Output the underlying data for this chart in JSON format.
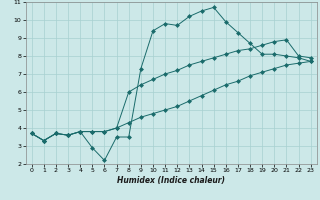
{
  "xlabel": "Humidex (Indice chaleur)",
  "xlim": [
    -0.5,
    23.5
  ],
  "ylim": [
    2,
    11
  ],
  "xticks": [
    0,
    1,
    2,
    3,
    4,
    5,
    6,
    7,
    8,
    9,
    10,
    11,
    12,
    13,
    14,
    15,
    16,
    17,
    18,
    19,
    20,
    21,
    22,
    23
  ],
  "yticks": [
    2,
    3,
    4,
    5,
    6,
    7,
    8,
    9,
    10,
    11
  ],
  "bg_color": "#cce8e8",
  "grid_color": "#a8d0d0",
  "line_color": "#1a6b6b",
  "line1_x": [
    0,
    1,
    2,
    3,
    4,
    5,
    6,
    7,
    8,
    9,
    10,
    11,
    12,
    13,
    14,
    15,
    16,
    17,
    18,
    19,
    20,
    21,
    22,
    23
  ],
  "line1_y": [
    3.7,
    3.3,
    3.7,
    3.6,
    3.8,
    2.9,
    2.2,
    3.5,
    3.5,
    7.3,
    9.4,
    9.8,
    9.7,
    10.2,
    10.5,
    10.7,
    9.9,
    9.3,
    8.7,
    8.1,
    8.1,
    8.0,
    7.9,
    7.7
  ],
  "line2_x": [
    0,
    1,
    2,
    3,
    4,
    5,
    6,
    7,
    8,
    9,
    10,
    11,
    12,
    13,
    14,
    15,
    16,
    17,
    18,
    19,
    20,
    21,
    22,
    23
  ],
  "line2_y": [
    3.7,
    3.3,
    3.7,
    3.6,
    3.8,
    3.8,
    3.8,
    4.0,
    6.0,
    6.4,
    6.7,
    7.0,
    7.2,
    7.5,
    7.7,
    7.9,
    8.1,
    8.3,
    8.4,
    8.6,
    8.8,
    8.9,
    8.0,
    7.9
  ],
  "line3_x": [
    0,
    1,
    2,
    3,
    4,
    5,
    6,
    7,
    8,
    9,
    10,
    11,
    12,
    13,
    14,
    15,
    16,
    17,
    18,
    19,
    20,
    21,
    22,
    23
  ],
  "line3_y": [
    3.7,
    3.3,
    3.7,
    3.6,
    3.8,
    3.8,
    3.8,
    4.0,
    4.3,
    4.6,
    4.8,
    5.0,
    5.2,
    5.5,
    5.8,
    6.1,
    6.4,
    6.6,
    6.9,
    7.1,
    7.3,
    7.5,
    7.6,
    7.7
  ],
  "markersize": 2.5
}
